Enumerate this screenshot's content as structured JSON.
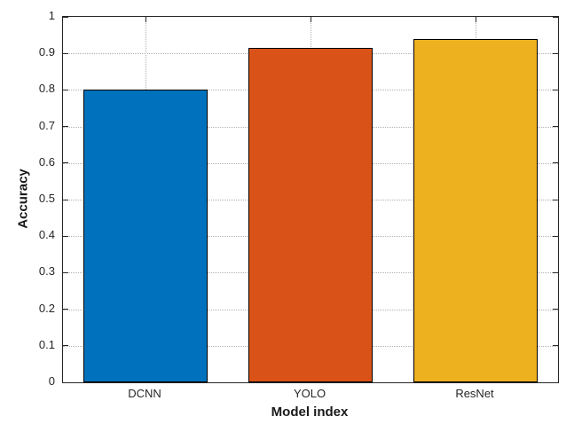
{
  "chart_data": {
    "type": "bar",
    "categories": [
      "DCNN",
      "YOLO",
      "ResNet"
    ],
    "values": [
      0.8,
      0.915,
      0.94
    ],
    "bar_colors": [
      "#0072BD",
      "#D95319",
      "#EDB120"
    ],
    "bar_edge_color": "#000000",
    "title": "",
    "xlabel": "Model index",
    "ylabel": "Accuracy",
    "ylim": [
      0,
      1
    ],
    "ytick_step": 0.1,
    "ytick_labels": [
      "0",
      "0.1",
      "0.2",
      "0.3",
      "0.4",
      "0.5",
      "0.6",
      "0.7",
      "0.8",
      "0.9",
      "1"
    ],
    "grid": true,
    "grid_style": "dotted",
    "legend": "none"
  }
}
